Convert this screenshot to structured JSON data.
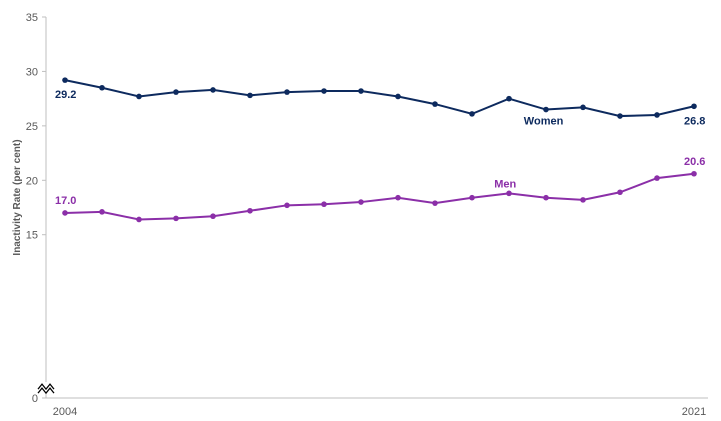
{
  "chart_data": {
    "type": "line",
    "title": "",
    "xlabel": "",
    "ylabel": "Inactivity Rate (per cent)",
    "ylim": [
      0,
      35
    ],
    "yticks": [
      "0",
      "15",
      "20",
      "25",
      "30",
      "35"
    ],
    "axis_break": true,
    "grid": false,
    "x": [
      2004,
      2005,
      2006,
      2007,
      2008,
      2009,
      2010,
      2011,
      2012,
      2013,
      2014,
      2015,
      2016,
      2017,
      2018,
      2019,
      2020,
      2021
    ],
    "x_tick_labels": [
      "2004",
      "2021"
    ],
    "series": [
      {
        "name": "Women",
        "color": "#0d2a5e",
        "values": [
          29.2,
          28.5,
          27.7,
          28.1,
          28.3,
          27.8,
          28.1,
          28.2,
          28.2,
          27.7,
          27.0,
          26.1,
          27.5,
          26.5,
          26.7,
          25.9,
          26.0,
          26.8
        ],
        "labels": [
          "29.2",
          "26.8"
        ]
      },
      {
        "name": "Men",
        "color": "#8b2fa8",
        "values": [
          17.0,
          17.1,
          16.4,
          16.5,
          16.7,
          17.2,
          17.7,
          17.8,
          18.0,
          18.4,
          17.9,
          18.4,
          18.8,
          18.4,
          18.2,
          18.9,
          20.2,
          20.6
        ],
        "labels": [
          "17.0",
          "20.6"
        ]
      }
    ]
  }
}
